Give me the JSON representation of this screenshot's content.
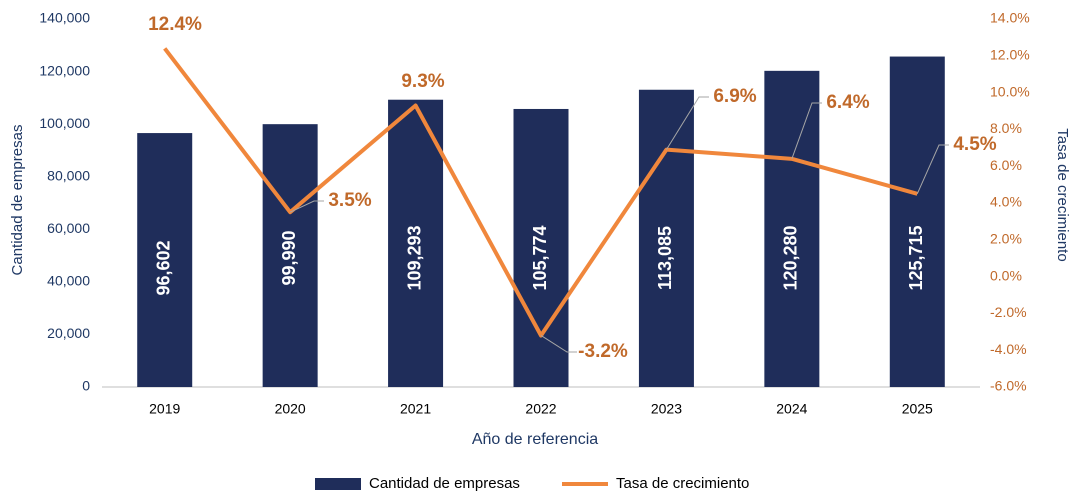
{
  "chart_data": {
    "type": "bar+line",
    "x_label": "Año de referencia",
    "y_label": "Cantidad de empresas",
    "y2_label": "Tasa de crecimiento",
    "categories": [
      "2019",
      "2020",
      "2021",
      "2022",
      "2023",
      "2024",
      "2025"
    ],
    "series": [
      {
        "name": "Cantidad de empresas",
        "type": "bar",
        "color": "#1f2d5a",
        "axis": "y",
        "values": [
          96602,
          99990,
          109293,
          105774,
          113085,
          120280,
          125715
        ],
        "value_labels": [
          "96,602",
          "99,990",
          "109,293",
          "105,774",
          "113,085",
          "120,280",
          "125,715"
        ]
      },
      {
        "name": "Tasa de crecimiento",
        "type": "line",
        "color": "#f0873c",
        "axis": "y2",
        "values": [
          12.4,
          3.5,
          9.3,
          -3.2,
          6.9,
          6.4,
          4.5
        ],
        "value_labels": [
          "12.4%",
          "3.5%",
          "9.3%",
          "-3.2%",
          "6.9%",
          "6.4%",
          "4.5%"
        ]
      }
    ],
    "ylim": [
      0,
      140000
    ],
    "yticks": [
      0,
      {
        "value": 20000,
        "label": "20,000"
      },
      {
        "value": 40000,
        "label": "40,000"
      },
      {
        "value": 60000,
        "label": "60,000"
      },
      {
        "value": 80000,
        "label": "80,000"
      },
      {
        "value": 100000,
        "label": "100,000"
      },
      {
        "value": 120000,
        "label": "120,000"
      },
      {
        "value": 140000,
        "label": "140,000"
      }
    ],
    "y2lim": [
      -6,
      14
    ],
    "y2ticks": [
      {
        "value": -6,
        "label": "-6.0%"
      },
      {
        "value": -4,
        "label": "-4.0%"
      },
      {
        "value": -2,
        "label": "-2.0%"
      },
      {
        "value": 0,
        "label": "0.0%"
      },
      {
        "value": 2,
        "label": "2.0%"
      },
      {
        "value": 4,
        "label": "4.0%"
      },
      {
        "value": 6,
        "label": "6.0%"
      },
      {
        "value": 8,
        "label": "8.0%"
      },
      {
        "value": 10,
        "label": "10.0%"
      },
      {
        "value": 12,
        "label": "12.0%"
      },
      {
        "value": 14,
        "label": "14.0%"
      }
    ],
    "legend": "bottom"
  }
}
